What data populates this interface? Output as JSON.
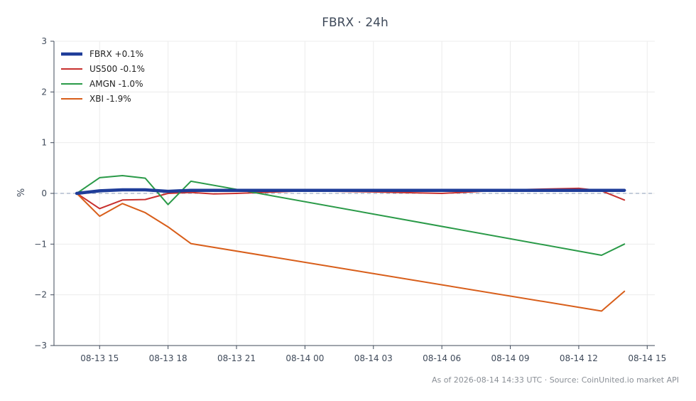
{
  "chart_data": {
    "type": "line",
    "title": "FBRX · 24h",
    "xlabel": "",
    "ylabel": "%",
    "ylim": [
      -3,
      3
    ],
    "xlim": [
      "2026-08-13 13:00",
      "2026-08-14 15:20"
    ],
    "yticks": [
      3,
      2,
      1,
      0,
      -1,
      -2,
      -3
    ],
    "ytick_labels": [
      "3",
      "2",
      "1",
      "0",
      "−1",
      "−2",
      "−3"
    ],
    "xticks": [
      "2026-08-13 15:00",
      "2026-08-13 18:00",
      "2026-08-13 21:00",
      "2026-08-14 00:00",
      "2026-08-14 03:00",
      "2026-08-14 06:00",
      "2026-08-14 09:00",
      "2026-08-14 12:00",
      "2026-08-14 15:00"
    ],
    "xtick_labels": [
      "08-13 15",
      "08-13 18",
      "08-13 21",
      "08-14 00",
      "08-14 03",
      "08-14 06",
      "08-14 09",
      "08-14 12",
      "08-14 15"
    ],
    "grid": true,
    "zero_line": true,
    "legend": "top-left",
    "series": [
      {
        "name": "FBRX +0.1%",
        "color": "#1f3d99",
        "emphasis": true,
        "x": [
          "2026-08-13 14:00",
          "2026-08-13 15:00",
          "2026-08-13 16:00",
          "2026-08-13 17:00",
          "2026-08-13 18:00",
          "2026-08-13 19:00",
          "2026-08-13 21:00",
          "2026-08-14 00:00",
          "2026-08-14 06:00",
          "2026-08-14 12:00",
          "2026-08-14 13:00",
          "2026-08-14 14:00"
        ],
        "values": [
          0.0,
          0.05,
          0.07,
          0.07,
          0.04,
          0.06,
          0.06,
          0.06,
          0.06,
          0.06,
          0.06,
          0.06
        ]
      },
      {
        "name": "US500 -0.1%",
        "color": "#c8302e",
        "x": [
          "2026-08-13 14:00",
          "2026-08-13 15:00",
          "2026-08-13 16:00",
          "2026-08-13 17:00",
          "2026-08-13 18:00",
          "2026-08-13 19:00",
          "2026-08-13 20:00",
          "2026-08-13 21:00",
          "2026-08-14 00:00",
          "2026-08-14 03:00",
          "2026-08-14 06:00",
          "2026-08-14 09:00",
          "2026-08-14 12:00",
          "2026-08-14 13:00",
          "2026-08-14 14:00"
        ],
        "values": [
          0.0,
          -0.3,
          -0.13,
          -0.12,
          0.0,
          0.02,
          -0.01,
          0.0,
          0.05,
          0.03,
          0.0,
          0.07,
          0.1,
          0.05,
          -0.13
        ]
      },
      {
        "name": "AMGN -1.0%",
        "color": "#2a9a48",
        "x": [
          "2026-08-13 14:00",
          "2026-08-13 15:00",
          "2026-08-13 16:00",
          "2026-08-13 17:00",
          "2026-08-13 18:00",
          "2026-08-13 19:00",
          "2026-08-13 21:00",
          "2026-08-14 13:00",
          "2026-08-14 14:00"
        ],
        "values": [
          0.0,
          0.31,
          0.35,
          0.3,
          -0.22,
          0.24,
          0.08,
          -1.22,
          -1.0
        ]
      },
      {
        "name": "XBI -1.9%",
        "color": "#d85e1a",
        "x": [
          "2026-08-13 14:00",
          "2026-08-13 15:00",
          "2026-08-13 16:00",
          "2026-08-13 17:00",
          "2026-08-13 18:00",
          "2026-08-13 19:00",
          "2026-08-14 13:00",
          "2026-08-14 14:00"
        ],
        "values": [
          0.0,
          -0.45,
          -0.2,
          -0.38,
          -0.66,
          -0.99,
          -2.32,
          -1.93
        ]
      }
    ]
  },
  "footer": "As of 2026-08-14 14:33 UTC · Source: CoinUnited.io market API"
}
